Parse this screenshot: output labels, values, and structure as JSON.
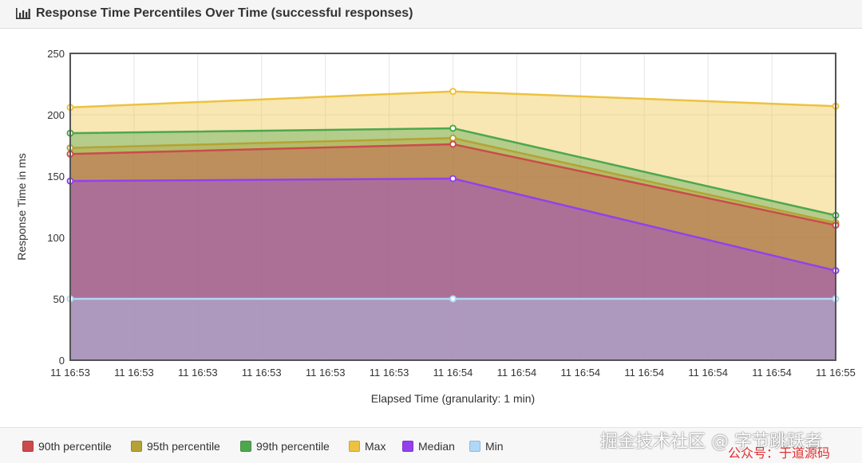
{
  "panel": {
    "title": "Response Time Percentiles Over Time (successful responses)",
    "icon": "bar-chart-icon"
  },
  "watermark": {
    "line1": "掘金技术社区 @ 字节跳跃者",
    "line2": "公众号：于道源码"
  },
  "chart_data": {
    "type": "area",
    "title": "",
    "xlabel": "Elapsed Time (granularity: 1 min)",
    "ylabel": "Response Time in ms",
    "ylim": [
      0,
      250
    ],
    "yticks": [
      0,
      50,
      100,
      150,
      200,
      250
    ],
    "x": [
      "11 16:53",
      "11 16:54",
      "11 16:55"
    ],
    "xtick_labels": [
      "11 16:53",
      "11 16:53",
      "11 16:53",
      "11 16:53",
      "11 16:53",
      "11 16:53",
      "11 16:54",
      "11 16:54",
      "11 16:54",
      "11 16:54",
      "11 16:54",
      "11 16:54",
      "11 16:55"
    ],
    "grid": true,
    "legend_position": "bottom",
    "series": [
      {
        "name": "90th percentile",
        "color": "#cb4b4b",
        "values": [
          168,
          176,
          110
        ]
      },
      {
        "name": "95th percentile",
        "color": "#b5a235",
        "values": [
          173,
          181,
          112
        ]
      },
      {
        "name": "99th percentile",
        "color": "#4da74d",
        "values": [
          185,
          189,
          118
        ]
      },
      {
        "name": "Max",
        "color": "#edc240",
        "values": [
          206,
          219,
          207
        ]
      },
      {
        "name": "Median",
        "color": "#9440ed",
        "values": [
          146,
          148,
          73
        ]
      },
      {
        "name": "Min",
        "color": "#afd8f8",
        "values": [
          50,
          50,
          50
        ]
      }
    ]
  }
}
